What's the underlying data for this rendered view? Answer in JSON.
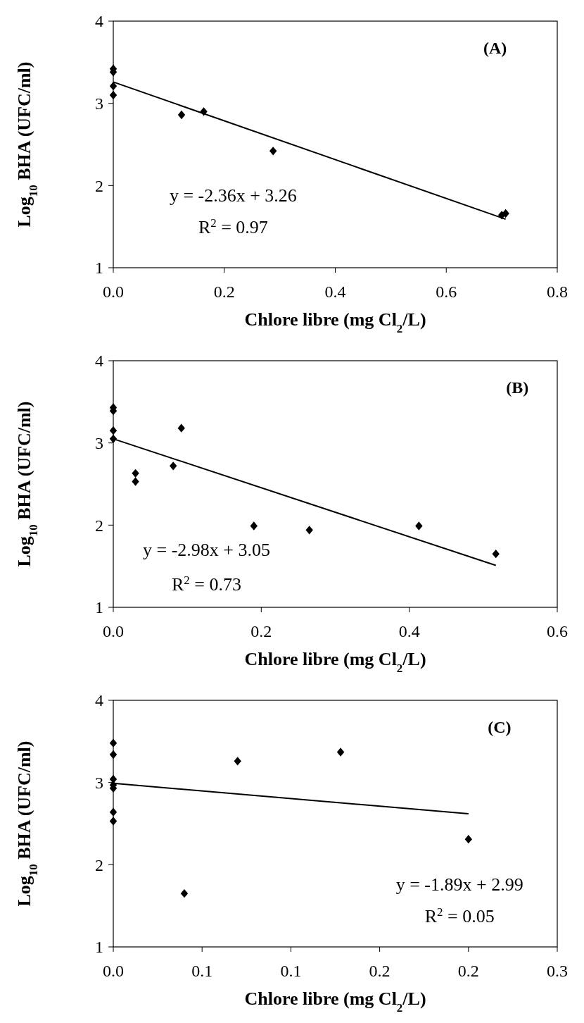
{
  "chart_data": [
    {
      "type": "scatter",
      "xlabel": "Chlore libre (mg Cl$_{2}$/L)",
      "ylabel": "Log$_{10}$ BHA (UFC/ml)",
      "xlim": [
        0,
        0.8
      ],
      "xticks": [
        {
          "value": 0,
          "label": "0.0"
        },
        0.2,
        0.4,
        0.6,
        0.8
      ],
      "ylim": [
        1,
        4
      ],
      "yticks": [
        1,
        2,
        3,
        4
      ],
      "annotations": [
        "(A)",
        "y = -2.36x + 3.26",
        "R$^{2}$ = 0.97"
      ],
      "series": [
        {
          "marker": "diamond",
          "color": "#000000",
          "x": [
            0,
            0,
            0,
            0,
            0.123,
            0.163,
            0.288,
            0.7,
            0.707
          ],
          "values": [
            3.42,
            3.38,
            3.21,
            3.1,
            2.86,
            2.9,
            2.42,
            1.64,
            1.66
          ]
        },
        {
          "type": "line",
          "marker": "none",
          "color": "#000000",
          "x": [
            0,
            0.707
          ],
          "values": [
            3.26,
            1.59
          ]
        }
      ]
    },
    {
      "type": "scatter",
      "xlabel": "Chlore libre (mg Cl$_{2}$/L)",
      "ylabel": "Log$_{10}$ BHA (UFC/ml)",
      "xlim": [
        0,
        0.6
      ],
      "xticks": [
        {
          "value": 0,
          "label": "0.0"
        },
        0.2,
        0.4,
        0.6
      ],
      "ylim": [
        1,
        4
      ],
      "yticks": [
        1,
        2,
        3,
        4
      ],
      "annotations": [
        "(B)",
        "y = -2.98x + 3.05",
        "R$^{2}$ = 0.73"
      ],
      "series": [
        {
          "marker": "diamond",
          "color": "#000000",
          "x": [
            0,
            0,
            0,
            0,
            0.03,
            0.03,
            0.081,
            0.092,
            0.19,
            0.265,
            0.413,
            0.517
          ],
          "values": [
            3.43,
            3.39,
            3.15,
            3.05,
            2.63,
            2.53,
            2.72,
            3.18,
            1.99,
            1.94,
            1.99,
            1.65
          ]
        },
        {
          "type": "line",
          "marker": "none",
          "color": "#000000",
          "x": [
            0,
            0.517
          ],
          "values": [
            3.05,
            1.51
          ]
        }
      ]
    },
    {
      "type": "scatter",
      "xlabel": "Chlore libre (mg Cl$_{2}$/L)",
      "ylabel": "Log$_{10}$ BHA (UFC/ml)",
      "xlim": [
        0,
        0.25
      ],
      "xticks": [
        {
          "value": 0,
          "label": "0.0"
        },
        {
          "value": 0.05,
          "label": "0.1"
        },
        {
          "value": 0.1,
          "label": "0.1"
        },
        {
          "value": 0.15,
          "label": "0.2"
        },
        {
          "value": 0.2,
          "label": "0.2"
        },
        {
          "value": 0.25,
          "label": "0.3"
        }
      ],
      "ylim": [
        1,
        4
      ],
      "yticks": [
        1,
        2,
        3,
        4
      ],
      "annotations": [
        "(C)",
        "y = -1.89x + 2.99",
        "R$^{2}$ = 0.05"
      ],
      "series": [
        {
          "marker": "diamond",
          "color": "#000000",
          "x": [
            0,
            0,
            0,
            0,
            0,
            0,
            0,
            0.04,
            0.07,
            0.128,
            0.2
          ],
          "values": [
            3.48,
            3.34,
            3.04,
            2.97,
            2.93,
            2.64,
            2.53,
            1.65,
            3.26,
            3.37,
            2.31
          ]
        },
        {
          "type": "line",
          "marker": "none",
          "color": "#000000",
          "x": [
            0,
            0.2
          ],
          "values": [
            2.99,
            2.62
          ]
        }
      ]
    }
  ]
}
